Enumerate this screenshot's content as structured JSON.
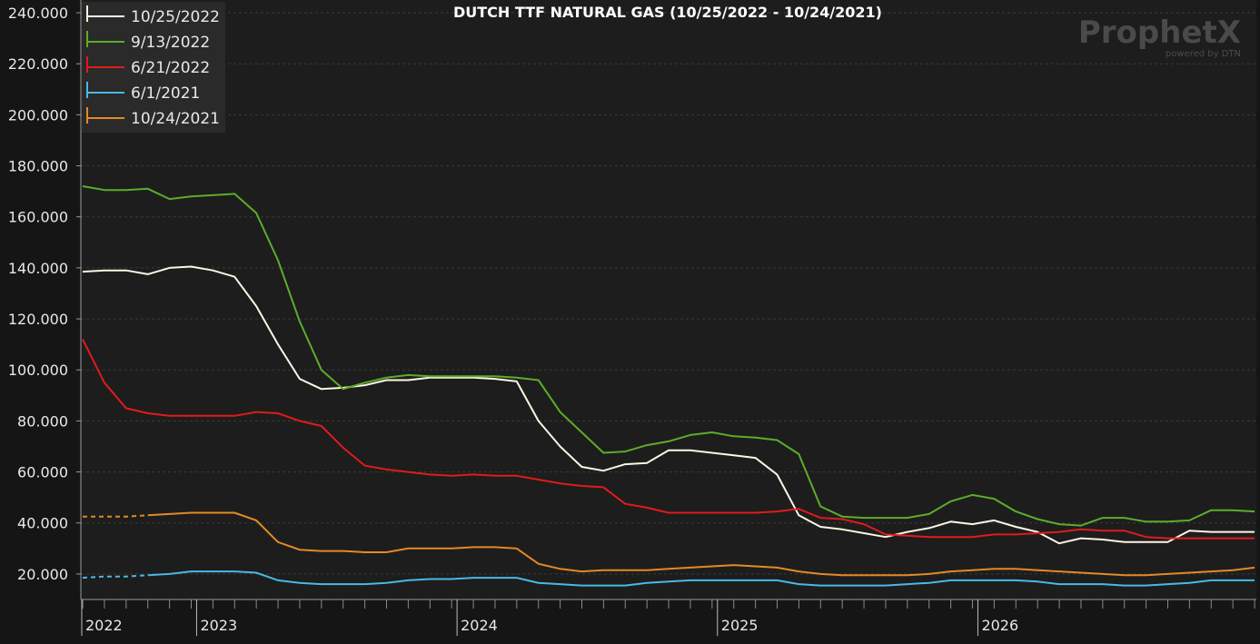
{
  "chart_data": {
    "type": "line",
    "title": "DUTCH TTF NATURAL GAS (10/25/2022 - 10/24/2021)",
    "xlabel": "",
    "ylabel": "",
    "ylim": [
      10,
      245
    ],
    "y_ticks": [
      "20.000",
      "40.000",
      "60.000",
      "80.000",
      "100.000",
      "120.000",
      "140.000",
      "160.000",
      "180.000",
      "200.000",
      "220.000",
      "240.000"
    ],
    "x_year_labels": [
      "2022",
      "2023",
      "2024",
      "2025",
      "2026"
    ],
    "grid": true,
    "legend_position": "top-left",
    "brand": {
      "logo": "ProphetX",
      "tagline": "powered by DTN"
    },
    "colors": {
      "background": "#151515",
      "plot_background": "#1e1e1e",
      "grid": "#3a3a3a",
      "text": "#e8e8e8"
    },
    "series": [
      {
        "name": "10/25/2022",
        "color": "#fdf6e3",
        "values": [
          138.5,
          139,
          139,
          137.5,
          140,
          140.5,
          139,
          136.5,
          125,
          110,
          96.5,
          92.5,
          93,
          94,
          96,
          96,
          97,
          97,
          97,
          96.5,
          95.5,
          80,
          70,
          62,
          60.5,
          63,
          63.5,
          68.5,
          68.5,
          67.5,
          66.5,
          65.5,
          59,
          43,
          38.5,
          37.5,
          36,
          34.5,
          36.5,
          38,
          40.5,
          39.5,
          41,
          38.5,
          36.5,
          32,
          34,
          33.5,
          32.5,
          32.5,
          32.5,
          37,
          36.5,
          36.5,
          36.5
        ]
      },
      {
        "name": "9/13/2022",
        "color": "#5cad2a",
        "values": [
          172,
          170.5,
          170.5,
          171,
          167,
          168,
          168.5,
          169,
          161.5,
          143,
          119,
          100,
          92.5,
          95,
          97,
          98,
          97.5,
          97.5,
          97.5,
          97.5,
          97,
          96,
          83.5,
          75.5,
          67.5,
          68,
          70.5,
          72,
          74.5,
          75.5,
          74,
          73.5,
          72.5,
          67,
          46.5,
          42.5,
          42,
          42,
          42,
          43.5,
          48.5,
          51,
          49.5,
          44.5,
          41.5,
          39.5,
          39,
          42,
          42,
          40.5,
          40.5,
          41,
          45,
          45,
          44.5
        ]
      },
      {
        "name": "6/21/2022",
        "color": "#e01b1b",
        "values": [
          112,
          95,
          85,
          83,
          82,
          82,
          82,
          82,
          83.5,
          83,
          80,
          78,
          69.5,
          62.5,
          61,
          60,
          59,
          58.5,
          59,
          58.5,
          58.5,
          57,
          55.5,
          54.5,
          54,
          47.5,
          46,
          44,
          44,
          44,
          44,
          44,
          44.5,
          45.5,
          42,
          41.5,
          39.5,
          35.5,
          35,
          34.5,
          34.5,
          34.5,
          35.5,
          35.5,
          36,
          36.5,
          37.5,
          37,
          37,
          34.5,
          34,
          34,
          34,
          34,
          34
        ]
      },
      {
        "name": "6/1/2021",
        "color": "#4ab8e8",
        "values": [
          18.5,
          19,
          19,
          19.5,
          20,
          21,
          21,
          21,
          20.5,
          17.5,
          16.5,
          16,
          16,
          16,
          16.5,
          17.5,
          18,
          18,
          18.5,
          18.5,
          18.5,
          16.5,
          16,
          15.5,
          15.5,
          15.5,
          16.5,
          17,
          17.5,
          17.5,
          17.5,
          17.5,
          17.5,
          16,
          15.5,
          15.5,
          15.5,
          15.5,
          16,
          16.5,
          17.5,
          17.5,
          17.5,
          17.5,
          17,
          16,
          16,
          16,
          15.5,
          15.5,
          16,
          16.5,
          17.5,
          17.5,
          17.5
        ]
      },
      {
        "name": "10/24/2021",
        "color": "#e38a24",
        "values": [
          42.5,
          42.5,
          42.5,
          43,
          43.5,
          44,
          44,
          44,
          41,
          32.5,
          29.5,
          29,
          29,
          28.5,
          28.5,
          30,
          30,
          30,
          30.5,
          30.5,
          30,
          24,
          22,
          21,
          21.5,
          21.5,
          21.5,
          22,
          22.5,
          23,
          23.5,
          23,
          22.5,
          21,
          20,
          19.5,
          19.5,
          19.5,
          19.5,
          20,
          21,
          21.5,
          22,
          22,
          21.5,
          21,
          20.5,
          20,
          19.5,
          19.5,
          20,
          20.5,
          21,
          21.5,
          22.5
        ]
      }
    ]
  }
}
